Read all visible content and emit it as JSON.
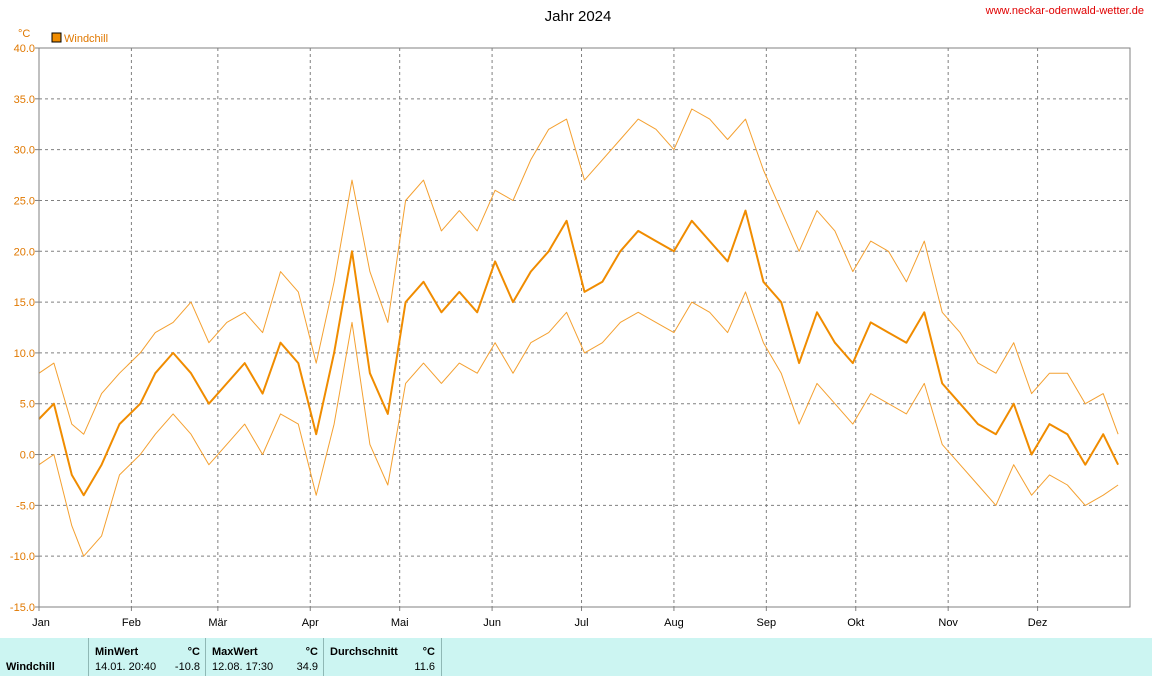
{
  "site": "www.neckar-odenwald-wetter.de",
  "chart_data": {
    "type": "line",
    "title": "Jahr 2024",
    "ylabel": "°C",
    "ylim": [
      -15,
      40
    ],
    "yticks": [
      "40.0",
      "35.0",
      "30.0",
      "25.0",
      "20.0",
      "15.0",
      "10.0",
      "5.0",
      "0.0",
      "-5.0",
      "-10.0",
      "-15.0"
    ],
    "months": [
      "Jan",
      "Feb",
      "Mär",
      "Apr",
      "Mai",
      "Jun",
      "Jul",
      "Aug",
      "Sep",
      "Okt",
      "Nov",
      "Dez"
    ],
    "grid": true,
    "legend": "top-left",
    "colors": {
      "mean": "#f08c00",
      "envelope": "#f4a030",
      "axis_text": "#e07800",
      "grid": "#808080"
    },
    "series": [
      {
        "name": "Windchill",
        "role": "mean",
        "x": [
          1,
          6,
          12,
          16,
          22,
          28,
          35,
          40,
          46,
          52,
          58,
          64,
          70,
          76,
          82,
          88,
          94,
          100,
          106,
          112,
          118,
          124,
          130,
          136,
          142,
          148,
          154,
          160,
          166,
          172,
          178,
          184,
          190,
          196,
          202,
          208,
          214,
          220,
          226,
          232,
          238,
          244,
          250,
          256,
          262,
          268,
          274,
          280,
          286,
          292,
          298,
          304,
          310,
          316,
          322,
          328,
          334,
          340,
          346,
          352,
          358,
          363
        ],
        "values": [
          3.5,
          5,
          -2,
          -4,
          -1,
          3,
          5,
          8,
          10,
          8,
          5,
          7,
          9,
          6,
          11,
          9,
          2,
          10,
          20,
          8,
          4,
          15,
          17,
          14,
          16,
          14,
          19,
          15,
          18,
          20,
          23,
          16,
          17,
          20,
          22,
          21,
          20,
          23,
          21,
          19,
          24,
          17,
          15,
          9,
          14,
          11,
          9,
          13,
          12,
          11,
          14,
          7,
          5,
          3,
          2,
          5,
          0,
          3,
          2,
          -1,
          2,
          -1
        ]
      },
      {
        "name": "",
        "role": "max",
        "x": [
          1,
          6,
          12,
          16,
          22,
          28,
          35,
          40,
          46,
          52,
          58,
          64,
          70,
          76,
          82,
          88,
          94,
          100,
          106,
          112,
          118,
          124,
          130,
          136,
          142,
          148,
          154,
          160,
          166,
          172,
          178,
          184,
          190,
          196,
          202,
          208,
          214,
          220,
          226,
          232,
          238,
          244,
          250,
          256,
          262,
          268,
          274,
          280,
          286,
          292,
          298,
          304,
          310,
          316,
          322,
          328,
          334,
          340,
          346,
          352,
          358,
          363
        ],
        "values": [
          8,
          9,
          3,
          2,
          6,
          8,
          10,
          12,
          13,
          15,
          11,
          13,
          14,
          12,
          18,
          16,
          9,
          17,
          27,
          18,
          13,
          25,
          27,
          22,
          24,
          22,
          26,
          25,
          29,
          32,
          33,
          27,
          29,
          31,
          33,
          32,
          30,
          34,
          33,
          31,
          33,
          28,
          24,
          20,
          24,
          22,
          18,
          21,
          20,
          17,
          21,
          14,
          12,
          9,
          8,
          11,
          6,
          8,
          8,
          5,
          6,
          2
        ]
      },
      {
        "name": "",
        "role": "min",
        "x": [
          1,
          6,
          12,
          16,
          22,
          28,
          35,
          40,
          46,
          52,
          58,
          64,
          70,
          76,
          82,
          88,
          94,
          100,
          106,
          112,
          118,
          124,
          130,
          136,
          142,
          148,
          154,
          160,
          166,
          172,
          178,
          184,
          190,
          196,
          202,
          208,
          214,
          220,
          226,
          232,
          238,
          244,
          250,
          256,
          262,
          268,
          274,
          280,
          286,
          292,
          298,
          304,
          310,
          316,
          322,
          328,
          334,
          340,
          346,
          352,
          358,
          363
        ],
        "values": [
          -1,
          0,
          -7,
          -10,
          -8,
          -2,
          0,
          2,
          4,
          2,
          -1,
          1,
          3,
          0,
          4,
          3,
          -4,
          3,
          13,
          1,
          -3,
          7,
          9,
          7,
          9,
          8,
          11,
          8,
          11,
          12,
          14,
          10,
          11,
          13,
          14,
          13,
          12,
          15,
          14,
          12,
          16,
          11,
          8,
          3,
          7,
          5,
          3,
          6,
          5,
          4,
          7,
          1,
          -1,
          -3,
          -5,
          -1,
          -4,
          -2,
          -3,
          -5,
          -4,
          -3
        ]
      }
    ]
  },
  "stats": {
    "row_label": "Windchill",
    "min_head": "MinWert",
    "min_unit": "°C",
    "min_date": "14.01.  20:40",
    "min_value": "-10.8",
    "max_head": "MaxWert",
    "max_unit": "°C",
    "max_date": "12.08.  17:30",
    "max_value": "34.9",
    "avg_head": "Durchschnitt",
    "avg_unit": "°C",
    "avg_value": "11.6"
  }
}
